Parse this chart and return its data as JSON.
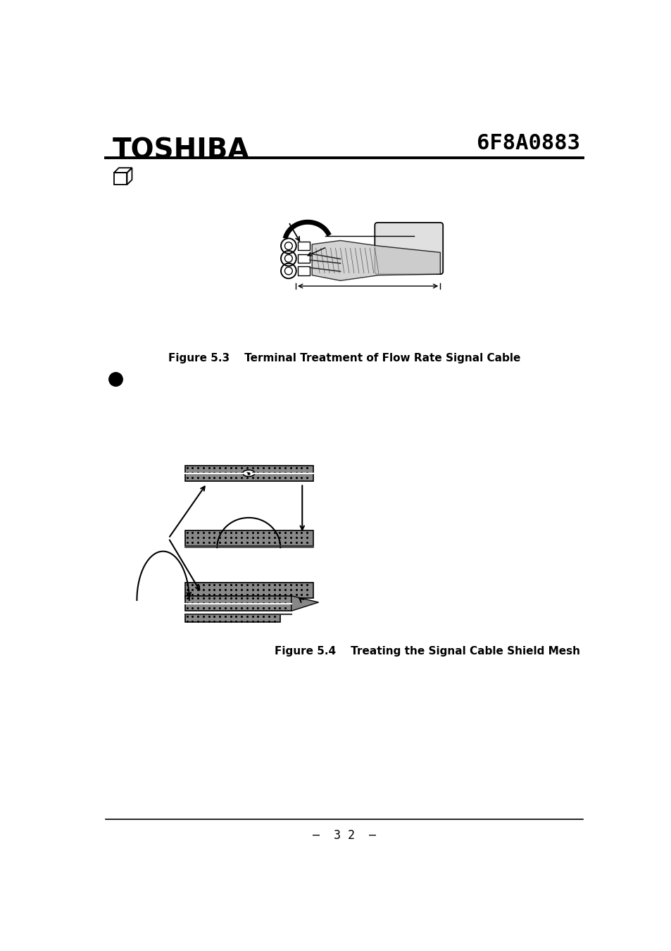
{
  "bg_color": "#ffffff",
  "header_toshiba": "TOSHIBA",
  "header_code": "6F8A0883",
  "page_number": "–  3 2  –",
  "fig3_caption": "Figure 5.3    Terminal Treatment of Flow Rate Signal Cable",
  "fig4_caption": "Figure 5.4    Treating the Signal Cable Shield Mesh"
}
